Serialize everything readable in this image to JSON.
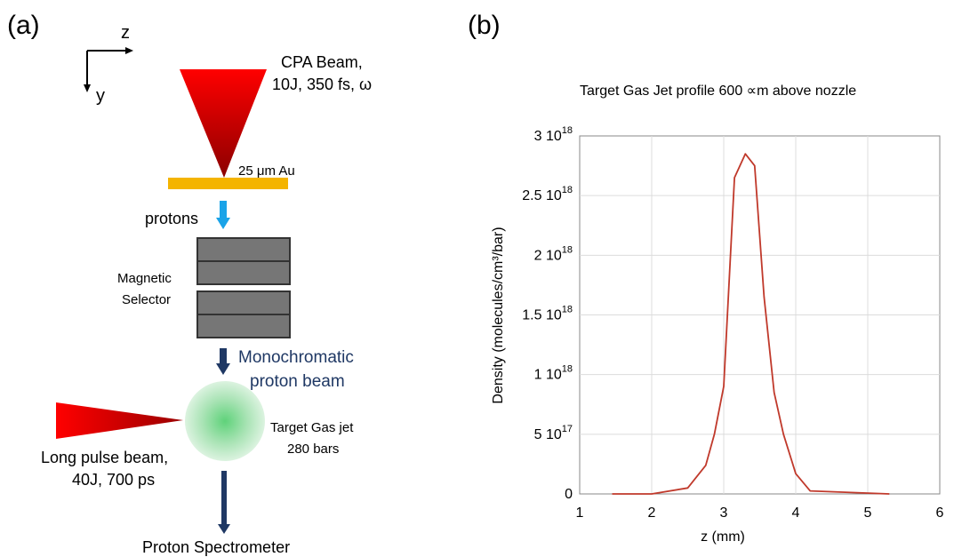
{
  "panel_a": {
    "tag": "(a)",
    "axis_z": "z",
    "axis_y": "y",
    "cpa_line1": "CPA Beam,",
    "cpa_line2": "10J, 350 fs, ω",
    "target_foil": "25 μm Au",
    "protons": "protons",
    "magnet_line1": "Magnetic",
    "magnet_line2": "Selector",
    "mono_line1": "Monochromatic",
    "mono_line2": "proton beam",
    "gasjet_line1": "Target Gas jet",
    "gasjet_line2": "280 bars",
    "longpulse_line1": "Long pulse beam,",
    "longpulse_line2": "40J, 700 ps",
    "spectrometer": "Proton Spectrometer",
    "colors": {
      "beam_red": "#e00000",
      "foil_gold": "#f4b400",
      "proton_arrow_blue": "#1aa3e8",
      "magnet_gray": "#767676",
      "dark_arrow": "#1f3864",
      "gas_green": "#8fd9a0"
    }
  },
  "panel_b": {
    "tag": "(b)"
  },
  "chart_data": {
    "type": "line",
    "title": "Target Gas Jet profile 600 ∝m above nozzle",
    "xlabel": "z (mm)",
    "ylabel": "Density (molecules/cm³/bar)",
    "xlim": [
      1,
      6
    ],
    "ylim": [
      0,
      3e+18
    ],
    "x_ticks": [
      "1",
      "2",
      "3",
      "4",
      "5",
      "6"
    ],
    "y_ticks": [
      {
        "mant": "0",
        "exp": ""
      },
      {
        "mant": "5 10",
        "exp": "17"
      },
      {
        "mant": "1 10",
        "exp": "18"
      },
      {
        "mant": "1.5 10",
        "exp": "18"
      },
      {
        "mant": "2 10",
        "exp": "18"
      },
      {
        "mant": "2.5 10",
        "exp": "18"
      },
      {
        "mant": "3 10",
        "exp": "18"
      }
    ],
    "grid": true,
    "series": [
      {
        "color": "#c0392b",
        "x": [
          1.45,
          2.0,
          2.5,
          2.75,
          2.87,
          3.0,
          3.15,
          3.3,
          3.43,
          3.56,
          3.7,
          3.83,
          4.0,
          4.2,
          5.3
        ],
        "y": [
          0,
          0,
          5e+16,
          2.4e+17,
          5e+17,
          9e+17,
          2.65e+18,
          2.85e+18,
          2.75e+18,
          1.65e+18,
          8.5e+17,
          5e+17,
          1.7e+17,
          2.5e+16,
          0
        ]
      }
    ]
  }
}
